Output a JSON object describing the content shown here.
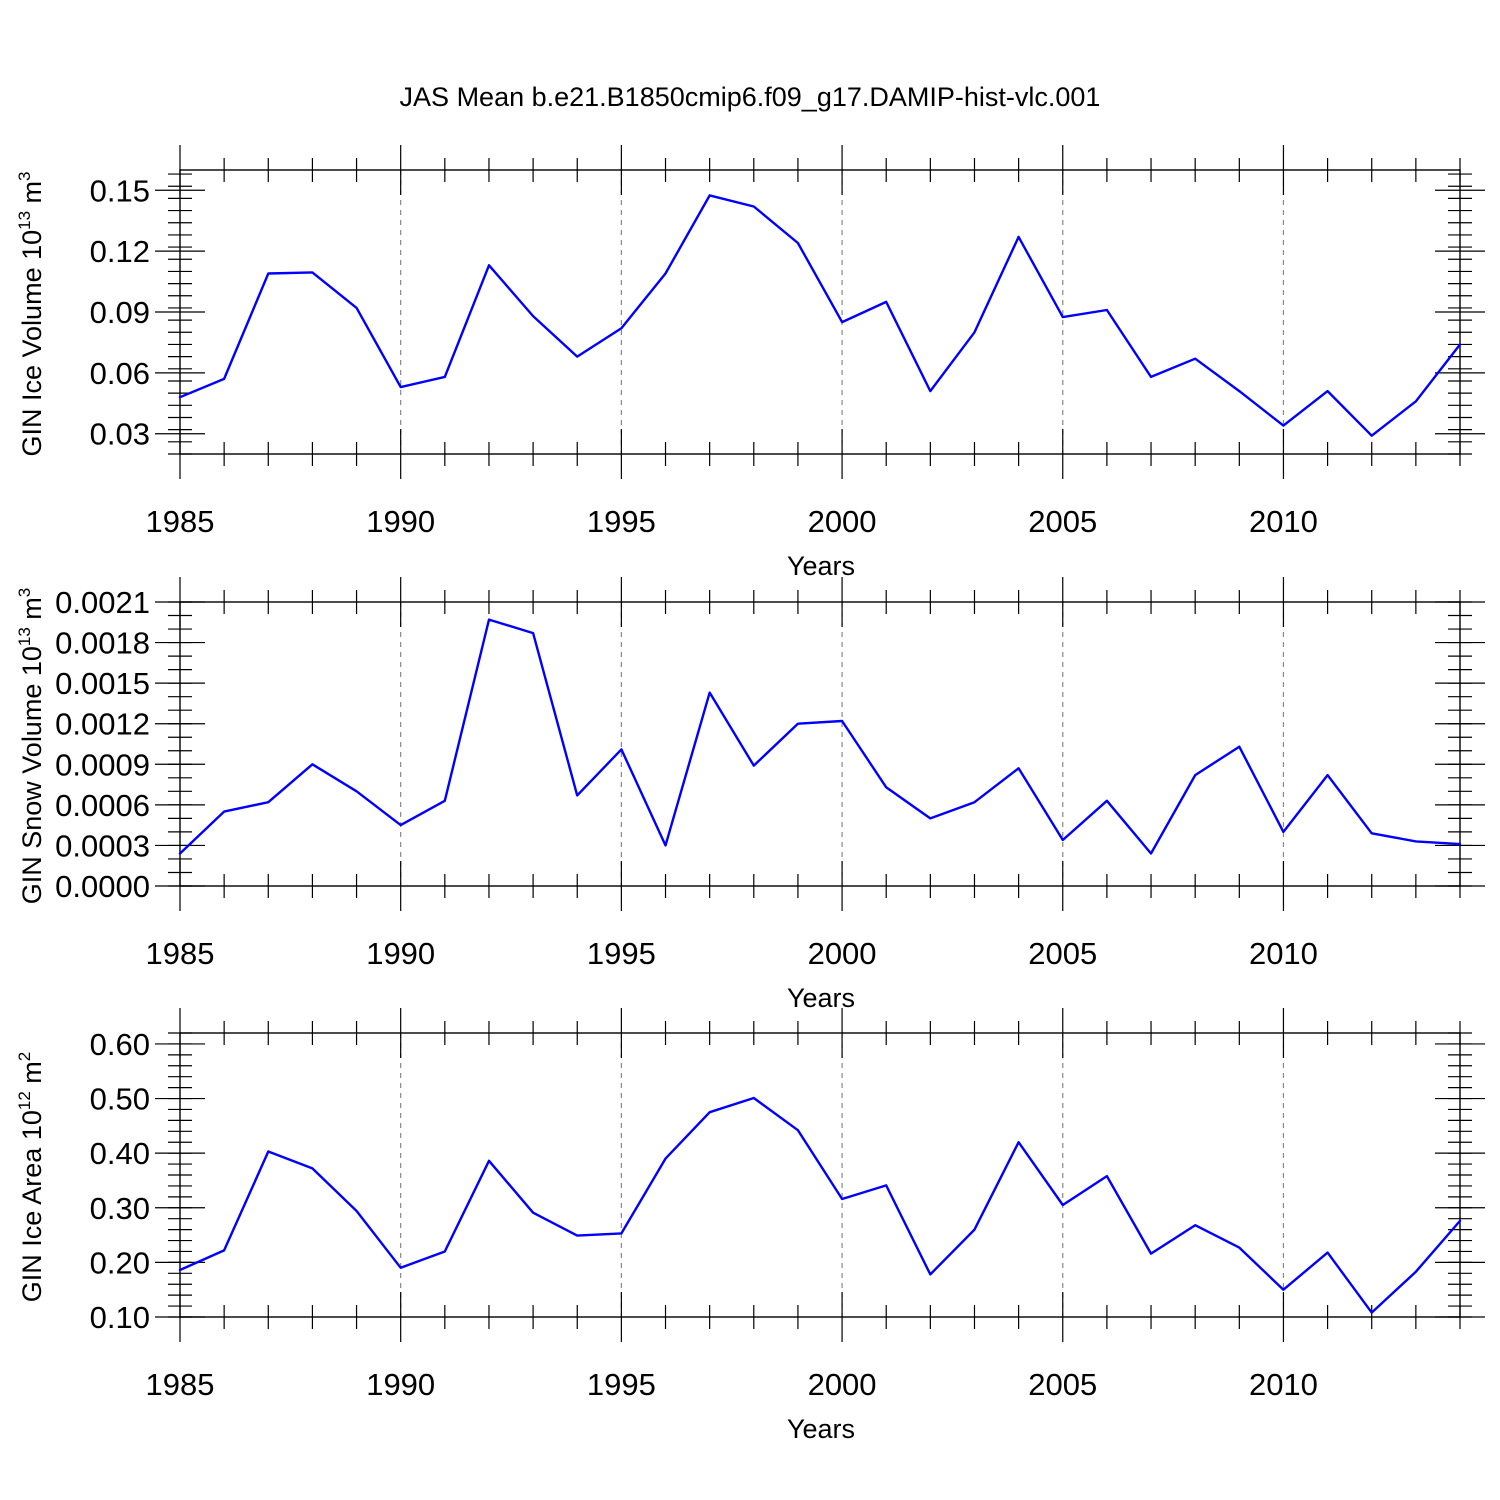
{
  "title": "JAS Mean b.e21.B1850cmip6.f09_g17.DAMIP-hist-vlc.001",
  "colors": {
    "series": "#0000ff",
    "axis": "#000000",
    "grid": "#888888"
  },
  "chart_data": [
    {
      "type": "line",
      "title": "JAS Mean b.e21.B1850cmip6.f09_g17.DAMIP-hist-vlc.001",
      "xlabel": "Years",
      "ylabel": "GIN Ice Volume 10",
      "ylabel_sup": "13",
      "ylabel_unit": " m",
      "ylabel_unit_sup": "3",
      "xlim": [
        1985,
        2014
      ],
      "ylim": [
        0.02,
        0.16
      ],
      "x_major_ticks": [
        1985,
        1990,
        1995,
        2000,
        2005,
        2010
      ],
      "x_major_labels": [
        "1985",
        "1990",
        "1995",
        "2000",
        "2005",
        "2010"
      ],
      "y_major_ticks": [
        0.03,
        0.06,
        0.09,
        0.12,
        0.15
      ],
      "y_major_labels": [
        "0.03",
        "0.06",
        "0.09",
        "0.12",
        "0.15"
      ],
      "y_minor_step": 0.006,
      "gridlines": "dashed vertical at 1990, 1995, 2000, 2005, 2010",
      "x": [
        1985,
        1986,
        1987,
        1988,
        1989,
        1990,
        1991,
        1992,
        1993,
        1994,
        1995,
        1996,
        1997,
        1998,
        1999,
        2000,
        2001,
        2002,
        2003,
        2004,
        2005,
        2006,
        2007,
        2008,
        2009,
        2010,
        2011,
        2012,
        2013,
        2014
      ],
      "series": [
        {
          "name": "GIN Ice Volume",
          "color": "#0000ff",
          "values": [
            0.048,
            0.057,
            0.109,
            0.1095,
            0.092,
            0.053,
            0.058,
            0.113,
            0.088,
            0.068,
            0.082,
            0.109,
            0.1475,
            0.142,
            0.124,
            0.085,
            0.095,
            0.051,
            0.08,
            0.127,
            0.0875,
            0.091,
            0.058,
            0.067,
            0.051,
            0.034,
            0.051,
            0.029,
            0.046,
            0.074
          ]
        }
      ]
    },
    {
      "type": "line",
      "xlabel": "Years",
      "ylabel": "GIN Snow Volume 10",
      "ylabel_sup": "13",
      "ylabel_unit": " m",
      "ylabel_unit_sup": "3",
      "xlim": [
        1985,
        2014
      ],
      "ylim": [
        0.0,
        0.0021
      ],
      "x_major_ticks": [
        1985,
        1990,
        1995,
        2000,
        2005,
        2010
      ],
      "x_major_labels": [
        "1985",
        "1990",
        "1995",
        "2000",
        "2005",
        "2010"
      ],
      "y_major_ticks": [
        0.0,
        0.0003,
        0.0006,
        0.0009,
        0.0012,
        0.0015,
        0.0018,
        0.0021
      ],
      "y_major_labels": [
        "0.0000",
        "0.0003",
        "0.0006",
        "0.0009",
        "0.0012",
        "0.0015",
        "0.0018",
        "0.0021"
      ],
      "y_minor_step": 0.0001,
      "gridlines": "dashed vertical at 1990, 1995, 2000, 2005, 2010",
      "x": [
        1985,
        1986,
        1987,
        1988,
        1989,
        1990,
        1991,
        1992,
        1993,
        1994,
        1995,
        1996,
        1997,
        1998,
        1999,
        2000,
        2001,
        2002,
        2003,
        2004,
        2005,
        2006,
        2007,
        2008,
        2009,
        2010,
        2011,
        2012,
        2013,
        2014
      ],
      "series": [
        {
          "name": "GIN Snow Volume",
          "color": "#0000ff",
          "values": [
            0.00024,
            0.00055,
            0.00062,
            0.0009,
            0.0007,
            0.00045,
            0.00063,
            0.00197,
            0.00187,
            0.00067,
            0.00101,
            0.0003,
            0.00143,
            0.00089,
            0.0012,
            0.00122,
            0.00073,
            0.0005,
            0.00062,
            0.00087,
            0.00034,
            0.00063,
            0.00024,
            0.00082,
            0.00103,
            0.0004,
            0.00082,
            0.00039,
            0.00033,
            0.00031
          ]
        }
      ]
    },
    {
      "type": "line",
      "xlabel": "Years",
      "ylabel": "GIN Ice Area 10",
      "ylabel_sup": "12",
      "ylabel_unit": " m",
      "ylabel_unit_sup": "2",
      "xlim": [
        1985,
        2014
      ],
      "ylim": [
        0.1,
        0.62
      ],
      "x_major_ticks": [
        1985,
        1990,
        1995,
        2000,
        2005,
        2010
      ],
      "x_major_labels": [
        "1985",
        "1990",
        "1995",
        "2000",
        "2005",
        "2010"
      ],
      "y_major_ticks": [
        0.1,
        0.2,
        0.3,
        0.4,
        0.5,
        0.6
      ],
      "y_major_labels": [
        "0.10",
        "0.20",
        "0.30",
        "0.40",
        "0.50",
        "0.60"
      ],
      "y_minor_step": 0.02,
      "gridlines": "dashed vertical at 1990, 1995, 2000, 2005, 2010",
      "x": [
        1985,
        1986,
        1987,
        1988,
        1989,
        1990,
        1991,
        1992,
        1993,
        1994,
        1995,
        1996,
        1997,
        1998,
        1999,
        2000,
        2001,
        2002,
        2003,
        2004,
        2005,
        2006,
        2007,
        2008,
        2009,
        2010,
        2011,
        2012,
        2013,
        2014
      ],
      "series": [
        {
          "name": "GIN Ice Area",
          "color": "#0000ff",
          "values": [
            0.186,
            0.222,
            0.403,
            0.372,
            0.294,
            0.19,
            0.22,
            0.386,
            0.291,
            0.249,
            0.253,
            0.39,
            0.475,
            0.501,
            0.442,
            0.316,
            0.341,
            0.178,
            0.26,
            0.42,
            0.305,
            0.358,
            0.216,
            0.268,
            0.227,
            0.15,
            0.218,
            0.108,
            0.183,
            0.276
          ]
        }
      ]
    }
  ]
}
